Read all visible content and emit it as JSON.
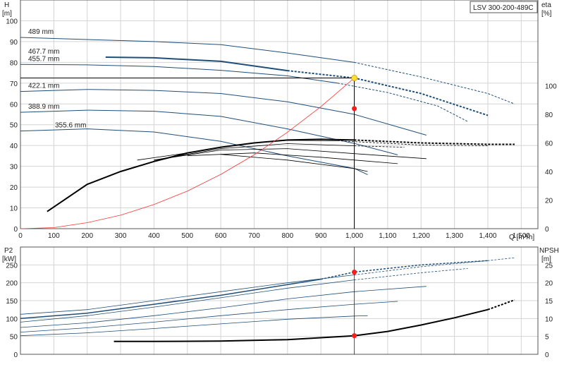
{
  "chart_data": [
    {
      "type": "line",
      "title": "LSV 300-200-489C",
      "y_label": "H",
      "y_unit": "[m]",
      "y2_label": "eta",
      "y2_unit": "[%]",
      "x_label": "Q [m³/h]",
      "xlim": [
        0,
        1550
      ],
      "ylim": [
        0,
        110
      ],
      "y2lim": [
        0,
        160
      ],
      "x_ticks": [
        "0",
        "100",
        "200",
        "300",
        "400",
        "500",
        "600",
        "700",
        "800",
        "900",
        "1,000",
        "1,100",
        "1,200",
        "1,300",
        "1,400",
        "1,500"
      ],
      "y_ticks": [
        "0",
        "10",
        "20",
        "30",
        "40",
        "50",
        "60",
        "70",
        "80",
        "90",
        "100"
      ],
      "y2_ticks": [
        "0",
        "20",
        "40",
        "60",
        "80",
        "100"
      ],
      "duty_point": {
        "q": 1000,
        "h": 72.5,
        "eta": 84
      },
      "series": [
        {
          "name": "489 mm",
          "solid": [
            [
              0,
              92
            ],
            [
              200,
              91
            ],
            [
              400,
              90
            ],
            [
              600,
              88.5
            ],
            [
              800,
              84.5
            ],
            [
              1000,
              80
            ]
          ],
          "dashed": [
            [
              1000,
              80
            ],
            [
              1200,
              73
            ],
            [
              1400,
              65
            ],
            [
              1480,
              60
            ]
          ]
        },
        {
          "name": "467.7 mm",
          "solid": [
            [
              255,
              82.5
            ],
            [
              400,
              82.2
            ],
            [
              600,
              80.5
            ],
            [
              800,
              76
            ]
          ],
          "dashed": [
            [
              800,
              76
            ],
            [
              1000,
              72.5
            ],
            [
              1200,
              65
            ],
            [
              1400,
              54.5
            ]
          ]
        },
        {
          "name": "455.7 mm",
          "solid": [
            [
              0,
              79
            ],
            [
              200,
              78.8
            ],
            [
              400,
              78
            ],
            [
              600,
              76.2
            ],
            [
              800,
              73.5
            ],
            [
              950,
              70
            ]
          ],
          "dashed": [
            [
              950,
              70
            ],
            [
              1100,
              65.5
            ],
            [
              1250,
              59
            ],
            [
              1340,
              51.5
            ]
          ]
        },
        {
          "name": "422.1 mm",
          "solid": [
            [
              0,
              66
            ],
            [
              200,
              67
            ],
            [
              400,
              66.5
            ],
            [
              600,
              65
            ],
            [
              800,
              61
            ],
            [
              1000,
              55
            ],
            [
              1216,
              45
            ]
          ],
          "dashed": []
        },
        {
          "name": "388.9 mm",
          "solid": [
            [
              0,
              56
            ],
            [
              200,
              57
            ],
            [
              400,
              56.5
            ],
            [
              600,
              54
            ],
            [
              800,
              48
            ],
            [
              1000,
              41
            ],
            [
              1130,
              35.5
            ]
          ],
          "dashed": []
        },
        {
          "name": "355.6 mm",
          "solid": [
            [
              0,
              47
            ],
            [
              200,
              48
            ],
            [
              400,
              46.5
            ],
            [
              600,
              42
            ],
            [
              800,
              35
            ],
            [
              1000,
              29
            ],
            [
              1040,
              26
            ]
          ],
          "dashed": []
        }
      ],
      "system_curve": [
        [
          0,
          0
        ],
        [
          100,
          0.5
        ],
        [
          200,
          2.9
        ],
        [
          300,
          6.5
        ],
        [
          400,
          11.6
        ],
        [
          500,
          18.1
        ],
        [
          600,
          26.1
        ],
        [
          700,
          35.5
        ],
        [
          800,
          46.4
        ],
        [
          900,
          58.7
        ],
        [
          1000,
          72.5
        ]
      ],
      "efficiency_curves": [
        {
          "solid": [
            [
              80,
              12
            ],
            [
              200,
              31
            ],
            [
              300,
              40
            ],
            [
              400,
              47
            ],
            [
              500,
              53
            ],
            [
              600,
              57
            ],
            [
              700,
              60
            ],
            [
              800,
              62
            ],
            [
              900,
              62.5
            ],
            [
              1000,
              62
            ]
          ],
          "dashed": [
            [
              1000,
              62
            ],
            [
              1200,
              60
            ],
            [
              1400,
              59
            ],
            [
              1480,
              59
            ]
          ]
        },
        {
          "solid": [
            [
              350,
              48
            ],
            [
              500,
              53
            ],
            [
              600,
              57
            ],
            [
              700,
              60
            ],
            [
              800,
              61.8
            ],
            [
              950,
              61.5
            ]
          ],
          "dashed": [
            [
              950,
              61.5
            ],
            [
              1200,
              58.5
            ],
            [
              1400,
              58
            ]
          ]
        },
        {
          "solid": [
            [
              400,
              48
            ],
            [
              600,
              56
            ],
            [
              800,
              59.5
            ],
            [
              1000,
              58
            ]
          ],
          "dashed": [
            [
              1000,
              58
            ],
            [
              1150,
              57
            ]
          ]
        },
        {
          "solid": [
            [
              400,
              48
            ],
            [
              600,
              55
            ],
            [
              800,
              56
            ],
            [
              1000,
              52.5
            ],
            [
              1216,
              49
            ]
          ],
          "dashed": []
        },
        {
          "solid": [
            [
              500,
              51
            ],
            [
              700,
              53
            ],
            [
              900,
              50
            ],
            [
              1130,
              45.5
            ]
          ],
          "dashed": []
        },
        {
          "solid": [
            [
              600,
              52
            ],
            [
              800,
              48
            ],
            [
              1000,
              42
            ],
            [
              1040,
              40
            ]
          ],
          "dashed": []
        }
      ]
    },
    {
      "type": "line",
      "y_label": "P2",
      "y_unit": "[kW]",
      "y2_label": "NPSH",
      "y2_unit": "[m]",
      "xlim": [
        0,
        1550
      ],
      "ylim": [
        0,
        300
      ],
      "y2lim": [
        0,
        30
      ],
      "y_ticks": [
        "0",
        "50",
        "100",
        "150",
        "200",
        "250"
      ],
      "y2_ticks": [
        "0",
        "5",
        "10",
        "15",
        "20",
        "25"
      ],
      "duty_point_power": {
        "q": 1000,
        "p": 230
      },
      "duty_point_npsh": {
        "q": 1000,
        "npsh": 5.2
      },
      "power_curves": [
        {
          "solid": [
            [
              0,
              112
            ],
            [
              200,
              125
            ],
            [
              400,
              150
            ],
            [
              600,
              175
            ],
            [
              800,
              200
            ],
            [
              1000,
              222
            ]
          ],
          "dashed": [
            [
              1000,
              222
            ],
            [
              1200,
              245
            ],
            [
              1400,
              262
            ],
            [
              1480,
              270
            ]
          ]
        },
        {
          "solid": [
            [
              0,
              100
            ],
            [
              200,
              115
            ],
            [
              400,
              140
            ],
            [
              600,
              165
            ],
            [
              800,
              195
            ],
            [
              900,
              210
            ]
          ],
          "dashed": [
            [
              900,
              210
            ],
            [
              1000,
              230
            ],
            [
              1200,
              250
            ],
            [
              1400,
              262
            ]
          ]
        },
        {
          "solid": [
            [
              0,
              90
            ],
            [
              200,
              108
            ],
            [
              400,
              132
            ],
            [
              600,
              158
            ],
            [
              800,
              185
            ],
            [
              1000,
              208
            ]
          ],
          "dashed": [
            [
              1000,
              208
            ],
            [
              1200,
              228
            ],
            [
              1340,
              240
            ]
          ]
        },
        {
          "solid": [
            [
              0,
              75
            ],
            [
              200,
              88
            ],
            [
              400,
              108
            ],
            [
              600,
              130
            ],
            [
              800,
              155
            ],
            [
              1000,
              175
            ],
            [
              1216,
              190
            ]
          ],
          "dashed": []
        },
        {
          "solid": [
            [
              0,
              62
            ],
            [
              200,
              74
            ],
            [
              400,
              90
            ],
            [
              600,
              108
            ],
            [
              800,
              125
            ],
            [
              1000,
              140
            ],
            [
              1130,
              148
            ]
          ],
          "dashed": []
        },
        {
          "solid": [
            [
              0,
              52
            ],
            [
              200,
              60
            ],
            [
              400,
              72
            ],
            [
              600,
              85
            ],
            [
              800,
              98
            ],
            [
              1000,
              107
            ],
            [
              1040,
              108
            ]
          ],
          "dashed": []
        }
      ],
      "npsh_curve": {
        "solid": [
          [
            280,
            3.6
          ],
          [
            400,
            3.6
          ],
          [
            600,
            3.7
          ],
          [
            800,
            4.1
          ],
          [
            1000,
            5.2
          ],
          [
            1100,
            6.4
          ],
          [
            1200,
            8.2
          ],
          [
            1300,
            10.2
          ],
          [
            1400,
            12.5
          ]
        ],
        "dashed": [
          [
            1400,
            12.5
          ],
          [
            1480,
            15.2
          ]
        ]
      }
    }
  ],
  "colors": {
    "curve_blue": "#1f4e79",
    "black": "#000000",
    "system_red": "#ff3333",
    "duty_yellow": "#ffdd33",
    "duty_red": "#ff1a1a"
  }
}
